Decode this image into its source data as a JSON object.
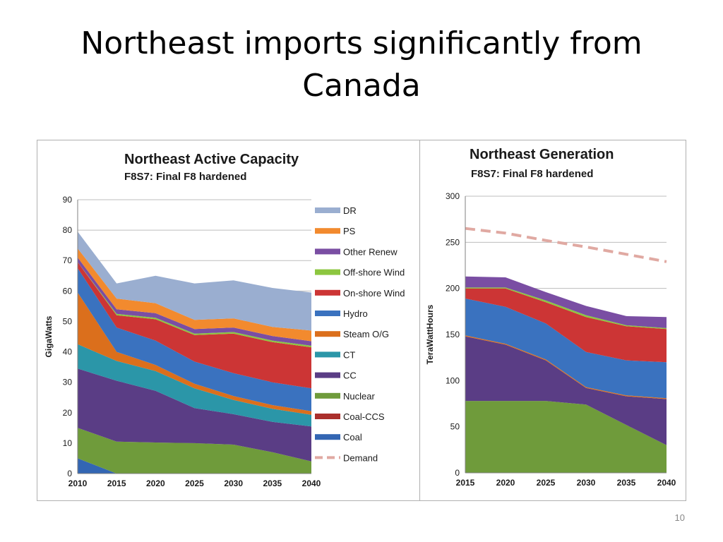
{
  "slide": {
    "title_line1": "Northeast imports significantly from",
    "title_line2": "Canada",
    "page_number": "10"
  },
  "chart_data": [
    {
      "type": "area",
      "stacked": true,
      "title": "Northeast Active Capacity",
      "subtitle": "F8S7: Final F8 hardened",
      "xlabel": "",
      "ylabel": "GigaWatts",
      "x": [
        2010,
        2015,
        2020,
        2025,
        2030,
        2035,
        2040
      ],
      "ylim": [
        0,
        90
      ],
      "yticks": [
        0,
        10,
        20,
        30,
        40,
        50,
        60,
        70,
        80,
        90
      ],
      "grid": true,
      "legend_position": "right",
      "series": [
        {
          "name": "Coal",
          "color": "#3366b3",
          "values": [
            5,
            0,
            0,
            0,
            0,
            0,
            0
          ]
        },
        {
          "name": "Coal-CCS",
          "color": "#aa2f2c",
          "values": [
            0,
            0,
            0,
            0,
            0,
            0,
            0
          ]
        },
        {
          "name": "Nuclear",
          "color": "#6f9b3b",
          "values": [
            10,
            10.5,
            10.2,
            10,
            9.5,
            7,
            4
          ]
        },
        {
          "name": "CC",
          "color": "#5a3d85",
          "values": [
            19.5,
            20,
            17,
            11.5,
            10,
            10,
            11.5
          ]
        },
        {
          "name": "CT",
          "color": "#2b96a8",
          "values": [
            8,
            6.5,
            6.5,
            6.5,
            4.7,
            4.3,
            3.8
          ]
        },
        {
          "name": "Steam O/G",
          "color": "#db6f1c",
          "values": [
            17,
            3,
            2,
            1.5,
            1.3,
            1.2,
            1.2
          ]
        },
        {
          "name": "Hydro",
          "color": "#3a72bf",
          "values": [
            8,
            8,
            8,
            7.3,
            7.5,
            7.5,
            7.5
          ]
        },
        {
          "name": "On-shore Wind",
          "color": "#cc3535",
          "values": [
            2,
            4,
            7,
            8.7,
            13,
            13.2,
            13.5
          ]
        },
        {
          "name": "Off-shore Wind",
          "color": "#8cc63f",
          "values": [
            0,
            0.5,
            0.5,
            0.5,
            0.5,
            0.5,
            0.5
          ]
        },
        {
          "name": "Other Renew",
          "color": "#7a4ea3",
          "values": [
            1.5,
            1.5,
            1.5,
            1.5,
            1.5,
            1.5,
            1.5
          ]
        },
        {
          "name": "PS",
          "color": "#f28a2e",
          "values": [
            3,
            3.5,
            3.3,
            3,
            3,
            3,
            3.5
          ]
        },
        {
          "name": "DR",
          "color": "#9aaed0",
          "values": [
            5.5,
            5,
            9,
            12,
            12.5,
            12.8,
            12.5
          ]
        }
      ],
      "demand": {
        "name": "Demand",
        "color": "#e0a9a2",
        "values": null
      }
    },
    {
      "type": "area",
      "stacked": true,
      "title": "Northeast Generation",
      "subtitle": "F8S7: Final F8 hardened",
      "xlabel": "",
      "ylabel": "TeraWattHours",
      "x": [
        2015,
        2020,
        2025,
        2030,
        2035,
        2040
      ],
      "ylim": [
        0,
        300
      ],
      "yticks": [
        0,
        50,
        100,
        150,
        200,
        250,
        300
      ],
      "grid": true,
      "series": [
        {
          "name": "Nuclear",
          "color": "#6f9b3b",
          "values": [
            78,
            78,
            78,
            74,
            52,
            30
          ]
        },
        {
          "name": "CC",
          "color": "#5a3d85",
          "values": [
            70,
            61,
            44,
            18,
            31,
            50
          ]
        },
        {
          "name": "Steam O/G",
          "color": "#db6f1c",
          "values": [
            1,
            1,
            1,
            1,
            1,
            1
          ]
        },
        {
          "name": "Hydro",
          "color": "#3a72bf",
          "values": [
            40,
            40,
            39,
            38,
            38,
            39
          ]
        },
        {
          "name": "On-shore Wind",
          "color": "#cc3535",
          "values": [
            11,
            20,
            23,
            38,
            37,
            36
          ]
        },
        {
          "name": "Off-shore Wind",
          "color": "#8cc63f",
          "values": [
            1,
            1,
            2,
            2,
            1,
            1
          ]
        },
        {
          "name": "Other Renew",
          "color": "#7a4ea3",
          "values": [
            12,
            11,
            9,
            10,
            10,
            12
          ]
        }
      ],
      "demand": {
        "name": "Demand",
        "color": "#e0a9a2",
        "values": [
          265,
          260,
          252,
          245,
          237,
          229
        ]
      }
    }
  ]
}
